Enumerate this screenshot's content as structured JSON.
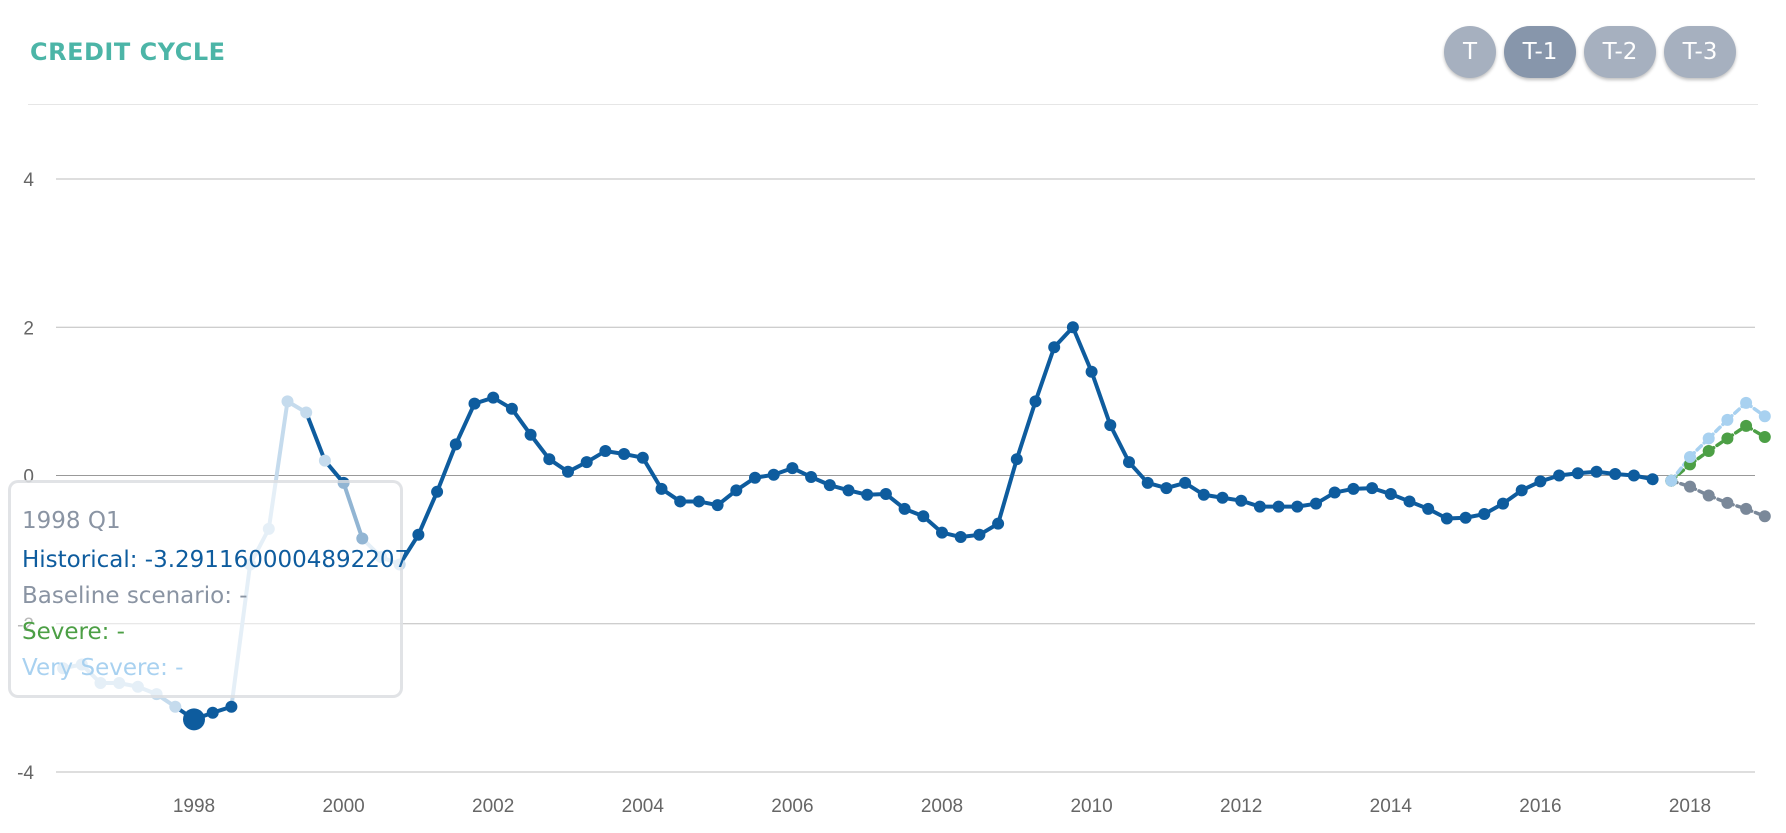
{
  "header": {
    "title": "CREDIT CYCLE",
    "buttons": [
      {
        "label": "T",
        "active": false
      },
      {
        "label": "T-1",
        "active": true
      },
      {
        "label": "T-2",
        "active": false
      },
      {
        "label": "T-3",
        "active": false
      }
    ]
  },
  "tooltip": {
    "date": "1998 Q1",
    "historical": "Historical: -3.2911600004892207",
    "baseline": "Baseline scenario: -",
    "severe": "Severe: -",
    "very_severe": "Very Severe: -"
  },
  "chart_data": {
    "type": "line",
    "title": "CREDIT CYCLE",
    "xlabel": "",
    "ylabel": "",
    "ylim": [
      -4,
      4
    ],
    "yticks": [
      -4,
      -2,
      0,
      2,
      4
    ],
    "y_tick_labels": [
      "-4",
      "-2",
      "0",
      "2",
      "4"
    ],
    "xlim": [
      1996,
      2019
    ],
    "xticks": [
      1998,
      2000,
      2002,
      2004,
      2006,
      2008,
      2010,
      2012,
      2014,
      2016,
      2018
    ],
    "x_tick_labels": [
      "1998",
      "2000",
      "2002",
      "2004",
      "2006",
      "2008",
      "2010",
      "2012",
      "2014",
      "2016",
      "2018"
    ],
    "grid": true,
    "legend": "none",
    "colors": {
      "historical": "#0e5c9e",
      "baseline": "#7a8899",
      "severe": "#4c9f45",
      "very_severe": "#a8d1f0",
      "faded_historical": "#c5dbed"
    },
    "series": [
      {
        "key": "historical",
        "x": [
          1996.25,
          1996.5,
          1996.75,
          1997.0,
          1997.25,
          1997.5,
          1997.75,
          1998.0,
          1998.25,
          1998.5,
          1998.75,
          1999.0,
          1999.25,
          1999.5,
          1999.75,
          2000.0,
          2000.25,
          2000.5,
          2000.75,
          2001.0,
          2001.25,
          2001.5,
          2001.75,
          2002.0,
          2002.25,
          2002.5,
          2002.75,
          2003.0,
          2003.25,
          2003.5,
          2003.75,
          2004.0,
          2004.25,
          2004.5,
          2004.75,
          2005.0,
          2005.25,
          2005.5,
          2005.75,
          2006.0,
          2006.25,
          2006.5,
          2006.75,
          2007.0,
          2007.25,
          2007.5,
          2007.75,
          2008.0,
          2008.25,
          2008.5,
          2008.75,
          2009.0,
          2009.25,
          2009.5,
          2009.75,
          2010.0,
          2010.25,
          2010.5,
          2010.75,
          2011.0,
          2011.25,
          2011.5,
          2011.75,
          2012.0,
          2012.25,
          2012.5,
          2012.75,
          2013.0,
          2013.25,
          2013.5,
          2013.75,
          2014.0,
          2014.25,
          2014.5,
          2014.75,
          2015.0,
          2015.25,
          2015.5,
          2015.75,
          2016.0,
          2016.25,
          2016.5,
          2016.75,
          2017.0,
          2017.25,
          2017.5
        ],
        "values": [
          -2.6,
          -2.55,
          -2.8,
          -2.8,
          -2.85,
          -2.95,
          -3.12,
          -3.29,
          -3.2,
          -3.12,
          -1.2,
          -0.72,
          1.0,
          0.85,
          0.2,
          -0.1,
          -0.85,
          -1.1,
          -1.2,
          -0.8,
          -0.22,
          0.42,
          0.97,
          1.05,
          0.9,
          0.55,
          0.22,
          0.05,
          0.18,
          0.33,
          0.29,
          0.24,
          -0.18,
          -0.35,
          -0.35,
          -0.4,
          -0.2,
          -0.03,
          0.01,
          0.1,
          -0.02,
          -0.13,
          -0.2,
          -0.26,
          -0.25,
          -0.45,
          -0.55,
          -0.77,
          -0.83,
          -0.8,
          -0.65,
          0.22,
          1.0,
          1.73,
          2.0,
          1.4,
          0.68,
          0.18,
          -0.1,
          -0.17,
          -0.1,
          -0.26,
          -0.3,
          -0.34,
          -0.42,
          -0.42,
          -0.42,
          -0.38,
          -0.23,
          -0.18,
          -0.17,
          -0.25,
          -0.35,
          -0.45,
          -0.58,
          -0.57,
          -0.52,
          -0.38,
          -0.2,
          -0.08,
          0.0,
          0.03,
          0.05,
          0.02,
          0.0,
          -0.05
        ]
      },
      {
        "key": "baseline",
        "x": [
          2017.75,
          2018.0,
          2018.25,
          2018.5,
          2018.75,
          2019.0
        ],
        "values": [
          -0.07,
          -0.15,
          -0.27,
          -0.37,
          -0.45,
          -0.55
        ]
      },
      {
        "key": "severe",
        "x": [
          2017.75,
          2018.0,
          2018.25,
          2018.5,
          2018.75,
          2019.0
        ],
        "values": [
          -0.07,
          0.15,
          0.33,
          0.5,
          0.67,
          0.52
        ]
      },
      {
        "key": "very_severe",
        "x": [
          2017.75,
          2018.0,
          2018.25,
          2018.5,
          2018.75,
          2019.0
        ],
        "values": [
          -0.07,
          0.25,
          0.5,
          0.75,
          0.98,
          0.8
        ]
      }
    ],
    "highlight": {
      "series": "historical",
      "x": 1998.0,
      "value": -3.2911600004892207
    }
  }
}
